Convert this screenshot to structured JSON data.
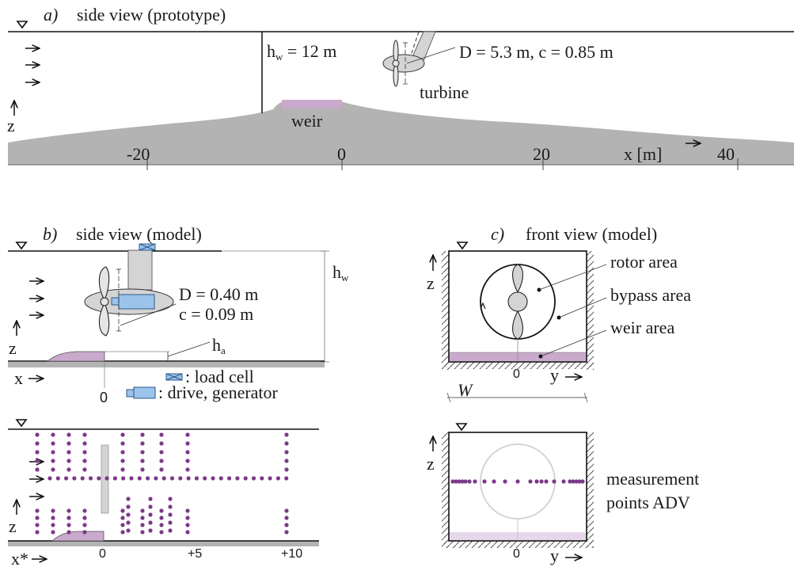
{
  "panel_a": {
    "title_letter": "a)",
    "title": "side view (prototype)",
    "depth_label": "h",
    "depth_sub": "w",
    "depth_value": " = 12 m",
    "turbine_params": "D = 5.3 m, c = 0.85 m",
    "turbine_label": "turbine",
    "weir_label": "weir",
    "z_label": "z",
    "x_label": "x [m]",
    "ticks": [
      "-20",
      "0",
      "20",
      "40"
    ]
  },
  "panel_b": {
    "title_letter": "b)",
    "title": "side view (model)",
    "depth_label": "h",
    "depth_sub": "w",
    "diameter": "D = 0.40 m",
    "chord": "c = 0.09 m",
    "weir_height_label": "h",
    "weir_height_sub": "a",
    "z_label": "z",
    "x_label": "x",
    "zero_tick": "0",
    "legend_load_cell": ": load cell",
    "legend_drive": ": drive, generator"
  },
  "panel_c": {
    "title_letter": "c)",
    "title": "front view (model)",
    "rotor_area": "rotor area",
    "bypass_area": "bypass area",
    "weir_area": "weir area",
    "z_label": "z",
    "y_label": "y",
    "zero_tick": "0",
    "width_label": "W"
  },
  "panel_d": {
    "z_label": "z",
    "x_label": "x*",
    "ticks": [
      "0",
      "+5",
      "+10"
    ]
  },
  "panel_e": {
    "z_label": "z",
    "y_label": "y",
    "zero_tick": "0",
    "caption_line1": "measurement",
    "caption_line2": "points ADV"
  },
  "colors": {
    "ground": "#b3b3b3",
    "weir": "#c9a9cc",
    "drive": "#9cc3ea",
    "points": "#7b3a87",
    "strut": "#d4d4d4"
  }
}
